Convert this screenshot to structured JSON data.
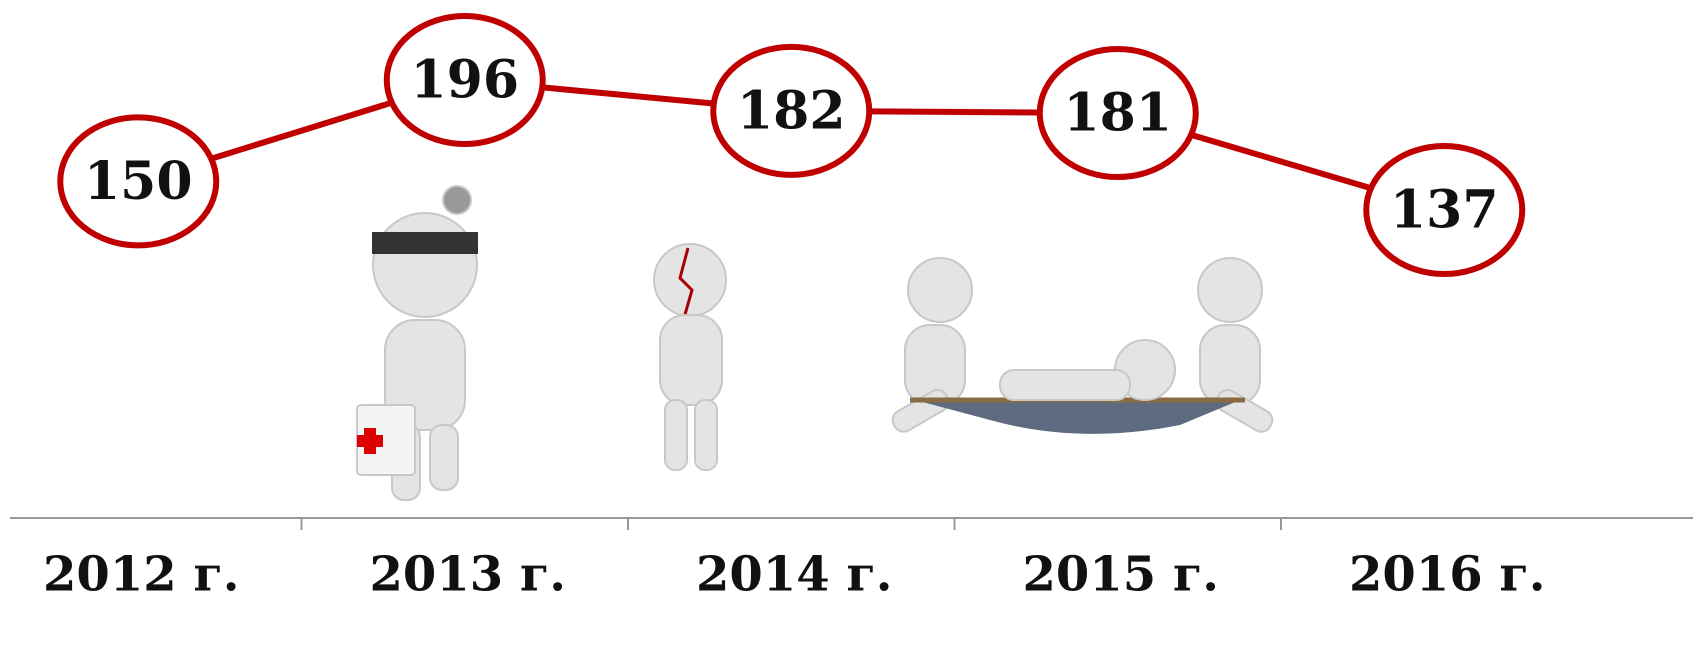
{
  "chart_data": {
    "type": "line",
    "categories": [
      "2012 г.",
      "2013 г.",
      "2014 г.",
      "2015 г.",
      "2016 г."
    ],
    "values": [
      150,
      196,
      182,
      181,
      137
    ],
    "color": "#c00000"
  }
}
